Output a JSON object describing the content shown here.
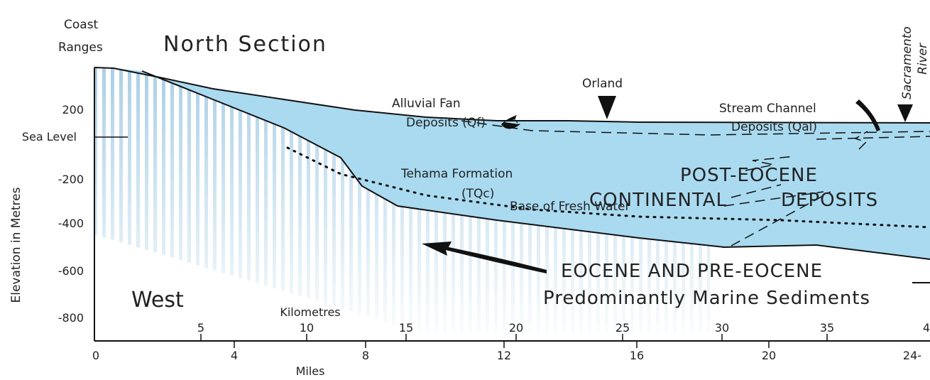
{
  "title": {
    "region_line1": "Coast",
    "region_line2": "Ranges",
    "section": "North Section"
  },
  "y_axis": {
    "label": "Elevation in Metres",
    "ticks": [
      "200",
      "Sea Level",
      "-200",
      "-400",
      "-600",
      "-800"
    ]
  },
  "x_axis": {
    "km_label": "Kilometres",
    "km_ticks": [
      "5",
      "10",
      "15",
      "20",
      "25",
      "30",
      "35",
      "4"
    ],
    "miles_label": "Miles",
    "mile_ticks": [
      "0",
      "4",
      "8",
      "12",
      "16",
      "20",
      "24-"
    ]
  },
  "labels": {
    "west": "West",
    "alluvial_1": "Alluvial Fan",
    "alluvial_2": "Deposits (Qf)",
    "orland": "Orland",
    "stream_1": "Stream Channel",
    "stream_2": "Deposits (Qal)",
    "sacramento_1": "Sacramento",
    "sacramento_2": "River",
    "tehama_1": "Tehama Formation",
    "tehama_2": "(TQc)",
    "post_1": "POST-EOCENE",
    "post_2": "CONTINENTAL",
    "post_3": "DEPOSITS",
    "fresh_water": "Base of Fresh Water",
    "eocene_1": "EOCENE AND PRE-EOCENE",
    "eocene_2": "Predominantly Marine Sediments"
  }
}
